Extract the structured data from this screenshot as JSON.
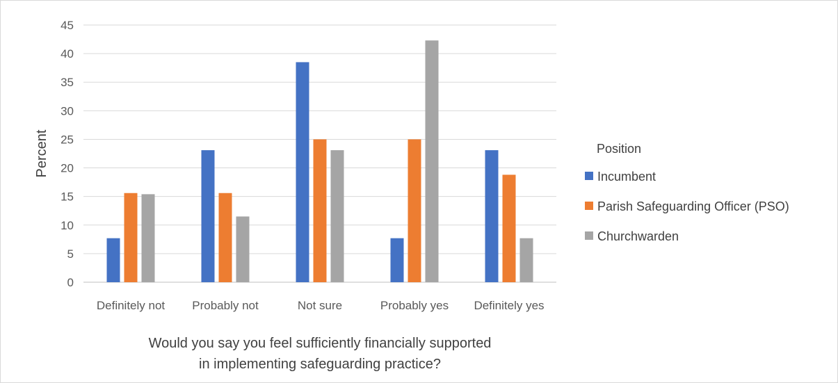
{
  "chart_data": {
    "type": "bar",
    "title": "",
    "categories": [
      "Definitely not",
      "Probably not",
      "Not sure",
      "Probably yes",
      "Definitely yes"
    ],
    "xlabel_lines": [
      "Would you say you feel sufficiently financially supported",
      "in implementing safeguarding practice?"
    ],
    "ylabel": "Percent",
    "ylim": [
      0,
      45
    ],
    "yticks": [
      0,
      5,
      10,
      15,
      20,
      25,
      30,
      35,
      40,
      45
    ],
    "grid": true,
    "legend": {
      "title": "Position",
      "placement": "right"
    },
    "series": [
      {
        "name": "Incumbent",
        "color": "#4472c4",
        "values": [
          7.7,
          23.1,
          38.5,
          7.7,
          23.1
        ]
      },
      {
        "name": "Parish Safeguarding Officer (PSO)",
        "color": "#ed7d31",
        "values": [
          15.6,
          15.6,
          25.0,
          25.0,
          18.8
        ]
      },
      {
        "name": "Churchwarden",
        "color": "#a5a5a5",
        "values": [
          15.4,
          11.5,
          23.1,
          42.3,
          7.7
        ]
      }
    ]
  }
}
